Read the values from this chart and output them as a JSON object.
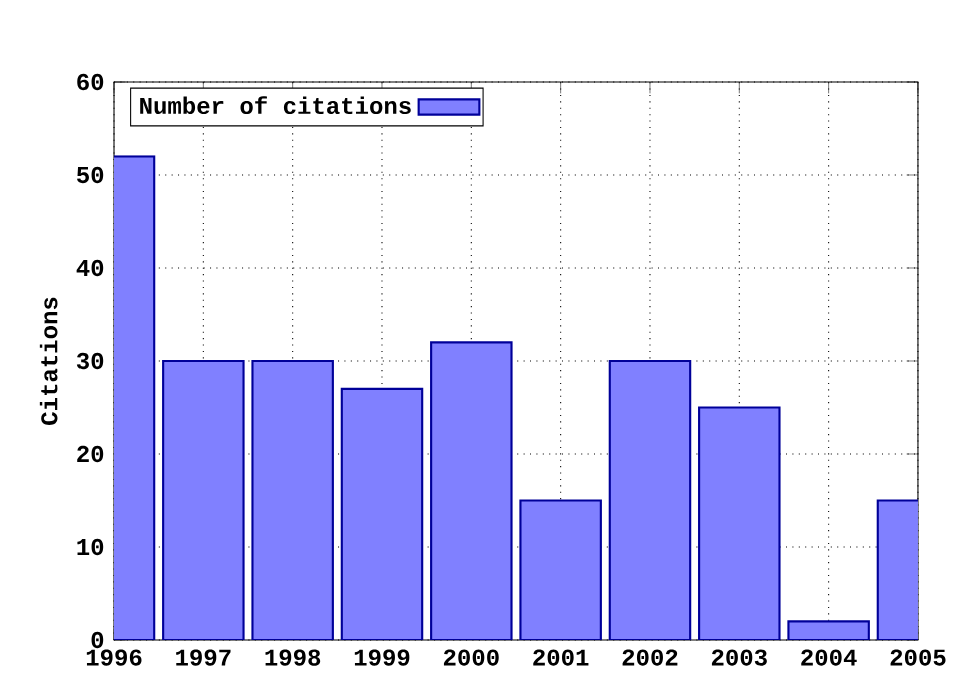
{
  "chart_data": {
    "type": "bar",
    "ylabel": "Citations",
    "x": [
      1996,
      1997,
      1998,
      1999,
      2000,
      2001,
      2002,
      2003,
      2004,
      2005
    ],
    "series": [
      {
        "name": "Number of citations",
        "color": "#8080ff",
        "values": [
          52,
          30,
          30,
          27,
          32,
          15,
          30,
          25,
          2,
          15
        ]
      }
    ],
    "xlim": [
      1996,
      2005
    ],
    "ylim": [
      0,
      60
    ],
    "xticks": [
      1996,
      1997,
      1998,
      1999,
      2000,
      2001,
      2002,
      2003,
      2004,
      2005
    ],
    "yticks": [
      0,
      10,
      20,
      30,
      40,
      50,
      60
    ],
    "grid": true,
    "legend": "top left"
  }
}
